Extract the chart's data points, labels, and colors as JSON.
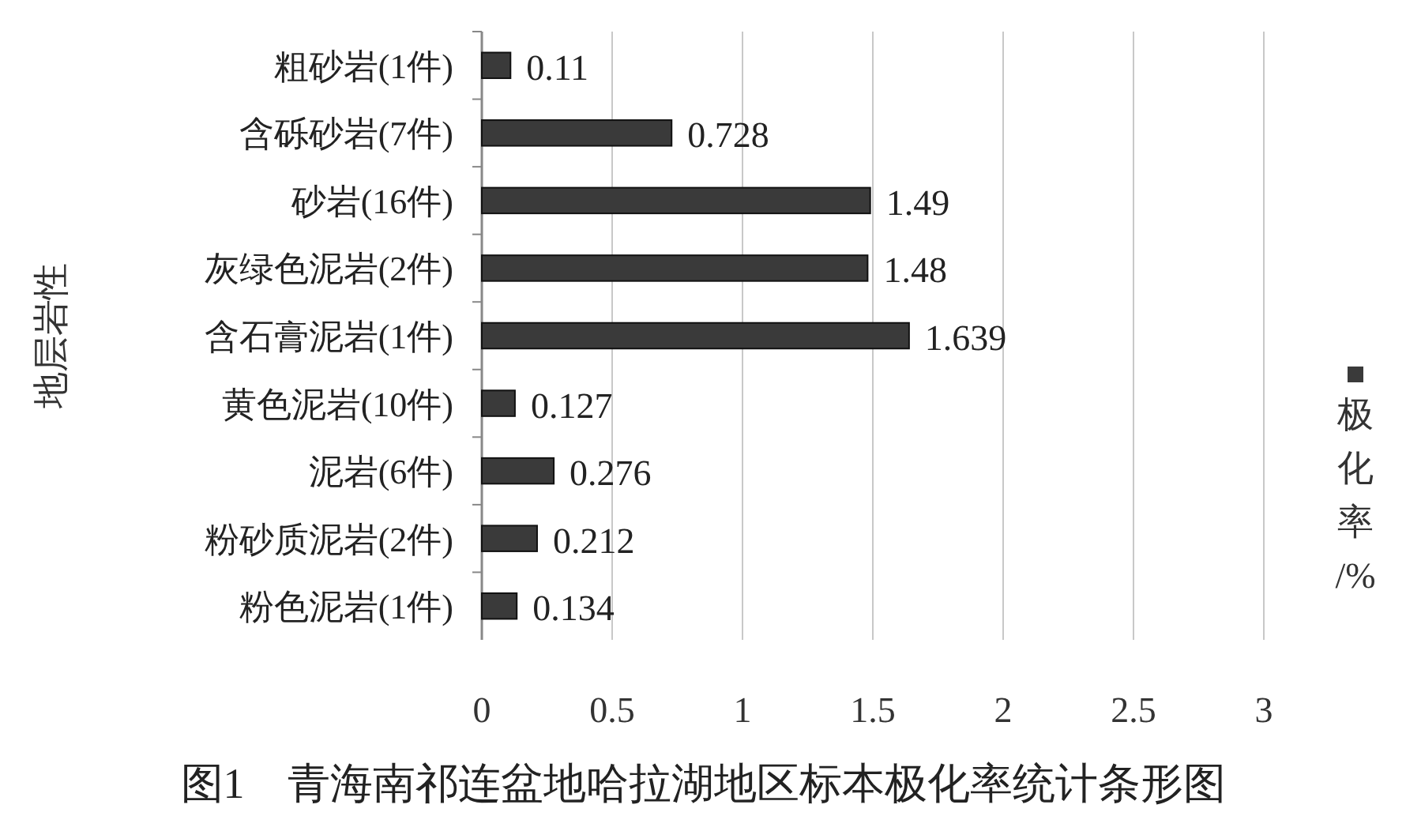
{
  "chart_data": {
    "type": "bar",
    "orientation": "horizontal",
    "title": "图1　青海南祁连盆地哈拉湖地区标本极化率统计条形图",
    "ylabel": "地层岩性",
    "categories": [
      "粗砂岩(1件)",
      "含砾砂岩(7件)",
      "砂岩(16件)",
      "灰绿色泥岩(2件)",
      "含石膏泥岩(1件)",
      "黄色泥岩(10件)",
      "泥岩(6件)",
      "粉砂质泥岩(2件)",
      "粉色泥岩(1件)"
    ],
    "series": [
      {
        "name": "极化率/%",
        "color": "#3a3a3a",
        "values": [
          0.11,
          0.728,
          1.49,
          1.48,
          1.639,
          0.127,
          0.276,
          0.212,
          0.134
        ]
      }
    ],
    "xlim": [
      0,
      3
    ],
    "xticks": [
      0,
      0.5,
      1,
      1.5,
      2,
      2.5,
      3
    ],
    "grid": "x",
    "legend": "right",
    "data_labels": true
  }
}
